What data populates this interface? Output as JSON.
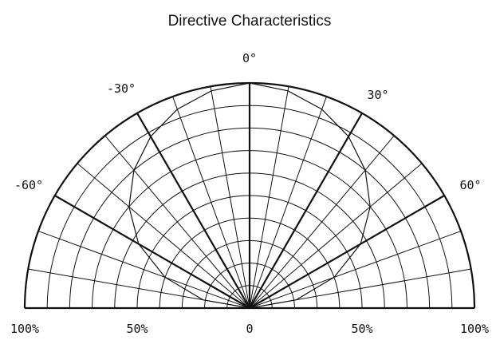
{
  "chart_data": {
    "type": "polar",
    "title": "Directive Characteristics",
    "angle_range_deg": [
      -90,
      90
    ],
    "angle_labels": [
      {
        "angle": -60,
        "text": "-60°"
      },
      {
        "angle": -30,
        "text": "-30°"
      },
      {
        "angle": 0,
        "text": "0°"
      },
      {
        "angle": 30,
        "text": "30°"
      },
      {
        "angle": 60,
        "text": "60°"
      }
    ],
    "radial_range_pct": [
      0,
      100
    ],
    "radial_labels": [
      {
        "value": -100,
        "text": "100%"
      },
      {
        "value": -50,
        "text": "50%"
      },
      {
        "value": 0,
        "text": "0"
      },
      {
        "value": 50,
        "text": "50%"
      },
      {
        "value": 100,
        "text": "100%"
      }
    ],
    "radial_gridlines_pct": [
      10,
      20,
      30,
      40,
      50,
      60,
      70,
      80,
      90,
      100
    ],
    "angular_gridlines_deg": [
      -90,
      -80,
      -70,
      -60,
      -50,
      -40,
      -30,
      -20,
      -10,
      0,
      10,
      20,
      30,
      40,
      50,
      60,
      70,
      80,
      90
    ],
    "major_angular_gridlines_deg": [
      -90,
      -60,
      -30,
      0,
      30,
      60,
      90
    ],
    "series": [
      {
        "x": [
          -90,
          -80,
          -70,
          -60,
          -50,
          -40,
          -30,
          -20,
          -10,
          0,
          10,
          20,
          30,
          40,
          50,
          60,
          70,
          80,
          90
        ],
        "y": [
          0,
          21,
          40,
          57,
          70,
          80,
          88,
          94,
          98,
          100,
          98,
          94,
          88,
          80,
          70,
          57,
          40,
          21,
          0
        ]
      }
    ],
    "grid": true
  }
}
